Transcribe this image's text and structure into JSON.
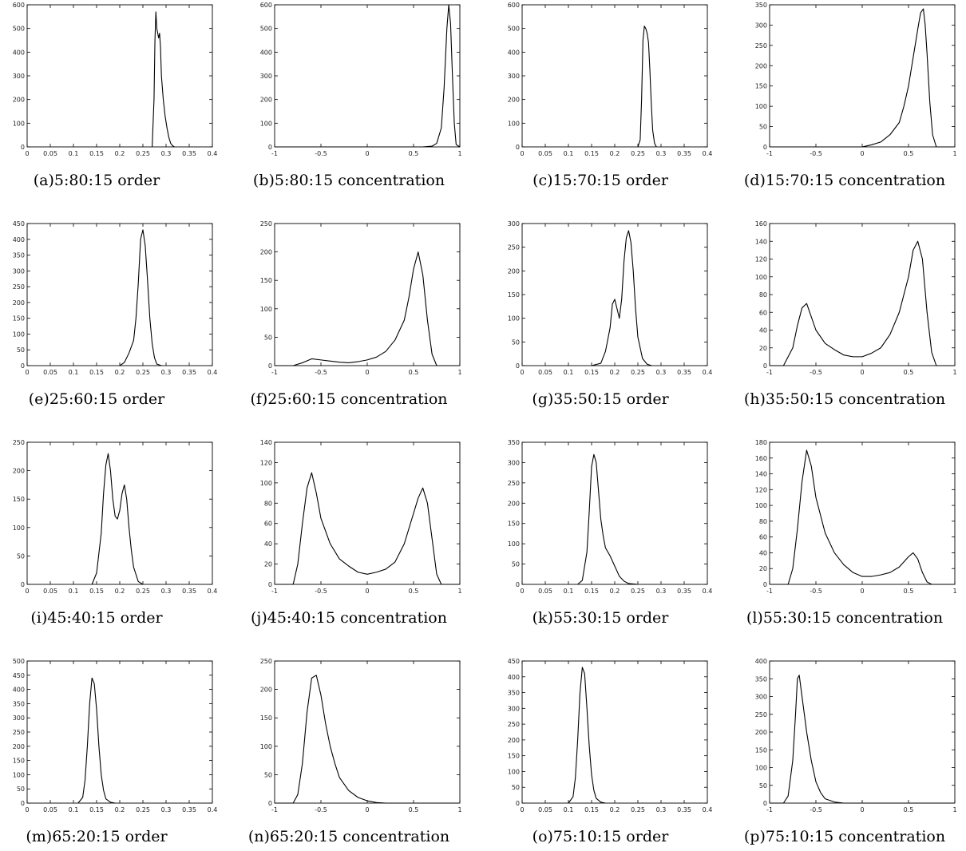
{
  "figure": {
    "background": "#ffffff",
    "line_color": "#000000"
  },
  "chart_data": [
    {
      "type": "line",
      "caption": "(a)5:80:15 order",
      "xlim": [
        0,
        0.4
      ],
      "ylim": [
        0,
        600
      ],
      "xticks": [
        0,
        0.05,
        0.1,
        0.15,
        0.2,
        0.25,
        0.3,
        0.35,
        0.4
      ],
      "yticks": [
        0,
        100,
        200,
        300,
        400,
        500,
        600
      ],
      "x": [
        0.27,
        0.274,
        0.276,
        0.278,
        0.28,
        0.282,
        0.284,
        0.286,
        0.288,
        0.29,
        0.294,
        0.298,
        0.302,
        0.306,
        0.31,
        0.314,
        0.318
      ],
      "y": [
        0,
        200,
        450,
        570,
        500,
        480,
        460,
        480,
        420,
        300,
        200,
        130,
        80,
        40,
        15,
        5,
        0
      ]
    },
    {
      "type": "line",
      "caption": "(b)5:80:15 concentration",
      "xlim": [
        -1,
        1
      ],
      "ylim": [
        0,
        600
      ],
      "xticks": [
        -1,
        -0.5,
        0,
        0.5,
        1
      ],
      "yticks": [
        0,
        100,
        200,
        300,
        400,
        500,
        600
      ],
      "x": [
        -1,
        0.6,
        0.7,
        0.75,
        0.8,
        0.83,
        0.86,
        0.88,
        0.9,
        0.92,
        0.94,
        0.96,
        1
      ],
      "y": [
        0,
        0,
        3,
        15,
        80,
        250,
        500,
        600,
        520,
        300,
        100,
        10,
        0
      ]
    },
    {
      "type": "line",
      "caption": "(c)15:70:15 order",
      "xlim": [
        0,
        0.4
      ],
      "ylim": [
        0,
        600
      ],
      "xticks": [
        0,
        0.05,
        0.1,
        0.15,
        0.2,
        0.25,
        0.3,
        0.35,
        0.4
      ],
      "yticks": [
        0,
        100,
        200,
        300,
        400,
        500,
        600
      ],
      "x": [
        0.25,
        0.255,
        0.258,
        0.261,
        0.264,
        0.267,
        0.27,
        0.273,
        0.276,
        0.279,
        0.282,
        0.286,
        0.29
      ],
      "y": [
        0,
        30,
        200,
        450,
        510,
        500,
        480,
        440,
        320,
        180,
        70,
        15,
        0
      ]
    },
    {
      "type": "line",
      "caption": "(d)15:70:15 concentration",
      "xlim": [
        -1,
        1
      ],
      "ylim": [
        0,
        350
      ],
      "xticks": [
        -1,
        -0.5,
        0,
        0.5,
        1
      ],
      "yticks": [
        0,
        50,
        100,
        150,
        200,
        250,
        300,
        350
      ],
      "x": [
        -1,
        0,
        0.1,
        0.2,
        0.3,
        0.4,
        0.45,
        0.5,
        0.55,
        0.6,
        0.63,
        0.66,
        0.68,
        0.7,
        0.73,
        0.76,
        0.8,
        1
      ],
      "y": [
        0,
        0,
        5,
        12,
        30,
        60,
        100,
        150,
        220,
        290,
        330,
        340,
        300,
        230,
        110,
        30,
        0,
        0
      ]
    },
    {
      "type": "line",
      "caption": "(e)25:60:15 order",
      "xlim": [
        0,
        0.4
      ],
      "ylim": [
        0,
        450
      ],
      "xticks": [
        0,
        0.05,
        0.1,
        0.15,
        0.2,
        0.25,
        0.3,
        0.35,
        0.4
      ],
      "yticks": [
        0,
        50,
        100,
        150,
        200,
        250,
        300,
        350,
        400,
        450
      ],
      "x": [
        0.2,
        0.21,
        0.22,
        0.23,
        0.235,
        0.24,
        0.245,
        0.25,
        0.255,
        0.26,
        0.265,
        0.27,
        0.275,
        0.28,
        0.29
      ],
      "y": [
        0,
        10,
        40,
        80,
        150,
        260,
        400,
        430,
        380,
        270,
        150,
        70,
        25,
        5,
        0
      ]
    },
    {
      "type": "line",
      "caption": "(f)25:60:15 concentration",
      "xlim": [
        -1,
        1
      ],
      "ylim": [
        0,
        250
      ],
      "xticks": [
        -1,
        -0.5,
        0,
        0.5,
        1
      ],
      "yticks": [
        0,
        50,
        100,
        150,
        200,
        250
      ],
      "x": [
        -1,
        -0.8,
        -0.7,
        -0.6,
        -0.5,
        -0.4,
        -0.3,
        -0.2,
        -0.1,
        0,
        0.1,
        0.2,
        0.3,
        0.4,
        0.45,
        0.5,
        0.55,
        0.6,
        0.65,
        0.7,
        0.75,
        1
      ],
      "y": [
        0,
        0,
        5,
        12,
        10,
        8,
        6,
        5,
        7,
        10,
        15,
        25,
        45,
        80,
        120,
        170,
        200,
        160,
        80,
        20,
        0,
        0
      ]
    },
    {
      "type": "line",
      "caption": "(g)35:50:15 order",
      "xlim": [
        0,
        0.4
      ],
      "ylim": [
        0,
        300
      ],
      "xticks": [
        0,
        0.05,
        0.1,
        0.15,
        0.2,
        0.25,
        0.3,
        0.35,
        0.4
      ],
      "yticks": [
        0,
        50,
        100,
        150,
        200,
        250,
        300
      ],
      "x": [
        0.15,
        0.17,
        0.18,
        0.19,
        0.195,
        0.2,
        0.205,
        0.21,
        0.215,
        0.22,
        0.225,
        0.23,
        0.235,
        0.24,
        0.245,
        0.25,
        0.26,
        0.27,
        0.28
      ],
      "y": [
        0,
        5,
        30,
        80,
        130,
        140,
        120,
        100,
        140,
        220,
        270,
        285,
        260,
        200,
        120,
        60,
        15,
        3,
        0
      ]
    },
    {
      "type": "line",
      "caption": "(h)35:50:15 concentration",
      "xlim": [
        -1,
        1
      ],
      "ylim": [
        0,
        160
      ],
      "xticks": [
        -1,
        -0.5,
        0,
        0.5,
        1
      ],
      "yticks": [
        0,
        20,
        40,
        60,
        80,
        100,
        120,
        140,
        160
      ],
      "x": [
        -1,
        -0.85,
        -0.75,
        -0.7,
        -0.65,
        -0.6,
        -0.55,
        -0.5,
        -0.4,
        -0.3,
        -0.2,
        -0.1,
        0,
        0.1,
        0.2,
        0.3,
        0.4,
        0.5,
        0.55,
        0.6,
        0.65,
        0.7,
        0.75,
        0.8,
        1
      ],
      "y": [
        0,
        0,
        20,
        45,
        65,
        70,
        55,
        40,
        25,
        18,
        12,
        10,
        10,
        14,
        20,
        35,
        60,
        100,
        130,
        140,
        120,
        60,
        15,
        0,
        0
      ]
    },
    {
      "type": "line",
      "caption": "(i)45:40:15 order",
      "xlim": [
        0,
        0.4
      ],
      "ylim": [
        0,
        250
      ],
      "xticks": [
        0,
        0.05,
        0.1,
        0.15,
        0.2,
        0.25,
        0.3,
        0.35,
        0.4
      ],
      "yticks": [
        0,
        50,
        100,
        150,
        200,
        250
      ],
      "x": [
        0.14,
        0.15,
        0.16,
        0.165,
        0.17,
        0.175,
        0.18,
        0.185,
        0.19,
        0.195,
        0.2,
        0.205,
        0.21,
        0.215,
        0.22,
        0.225,
        0.23,
        0.24,
        0.25
      ],
      "y": [
        0,
        20,
        90,
        160,
        210,
        230,
        200,
        150,
        120,
        115,
        130,
        160,
        175,
        150,
        100,
        60,
        30,
        5,
        0
      ]
    },
    {
      "type": "line",
      "caption": "(j)45:40:15 concentration",
      "xlim": [
        -1,
        1
      ],
      "ylim": [
        0,
        140
      ],
      "xticks": [
        -1,
        -0.5,
        0,
        0.5,
        1
      ],
      "yticks": [
        0,
        20,
        40,
        60,
        80,
        100,
        120,
        140
      ],
      "x": [
        -1,
        -0.8,
        -0.75,
        -0.7,
        -0.65,
        -0.6,
        -0.55,
        -0.5,
        -0.4,
        -0.3,
        -0.2,
        -0.1,
        0,
        0.1,
        0.2,
        0.3,
        0.4,
        0.5,
        0.55,
        0.6,
        0.65,
        0.7,
        0.75,
        0.8,
        1
      ],
      "y": [
        0,
        0,
        20,
        60,
        95,
        110,
        90,
        65,
        40,
        25,
        18,
        12,
        10,
        12,
        15,
        22,
        40,
        70,
        85,
        95,
        80,
        45,
        10,
        0,
        0
      ]
    },
    {
      "type": "line",
      "caption": "(k)55:30:15 order",
      "xlim": [
        0,
        0.4
      ],
      "ylim": [
        0,
        350
      ],
      "xticks": [
        0,
        0.05,
        0.1,
        0.15,
        0.2,
        0.25,
        0.3,
        0.35,
        0.4
      ],
      "yticks": [
        0,
        50,
        100,
        150,
        200,
        250,
        300,
        350
      ],
      "x": [
        0.12,
        0.13,
        0.14,
        0.145,
        0.15,
        0.155,
        0.16,
        0.165,
        0.17,
        0.175,
        0.18,
        0.19,
        0.2,
        0.21,
        0.22,
        0.23,
        0.25
      ],
      "y": [
        0,
        10,
        80,
        180,
        290,
        320,
        300,
        230,
        160,
        120,
        90,
        70,
        45,
        20,
        8,
        2,
        0
      ]
    },
    {
      "type": "line",
      "caption": "(l)55:30:15 concentration",
      "xlim": [
        -1,
        1
      ],
      "ylim": [
        0,
        180
      ],
      "xticks": [
        -1,
        -0.5,
        0,
        0.5,
        1
      ],
      "yticks": [
        0,
        20,
        40,
        60,
        80,
        100,
        120,
        140,
        160,
        180
      ],
      "x": [
        -1,
        -0.8,
        -0.75,
        -0.7,
        -0.65,
        -0.6,
        -0.55,
        -0.5,
        -0.4,
        -0.3,
        -0.2,
        -0.1,
        0,
        0.1,
        0.2,
        0.3,
        0.4,
        0.5,
        0.55,
        0.6,
        0.65,
        0.7,
        0.75,
        1
      ],
      "y": [
        0,
        0,
        20,
        70,
        130,
        170,
        150,
        110,
        65,
        40,
        25,
        15,
        10,
        10,
        12,
        15,
        22,
        35,
        40,
        32,
        15,
        3,
        0,
        0
      ]
    },
    {
      "type": "line",
      "caption": "(m)65:20:15 order",
      "xlim": [
        0,
        0.4
      ],
      "ylim": [
        0,
        500
      ],
      "xticks": [
        0,
        0.05,
        0.1,
        0.15,
        0.2,
        0.25,
        0.3,
        0.35,
        0.4
      ],
      "yticks": [
        0,
        50,
        100,
        150,
        200,
        250,
        300,
        350,
        400,
        450,
        500
      ],
      "x": [
        0.11,
        0.12,
        0.125,
        0.13,
        0.135,
        0.14,
        0.145,
        0.15,
        0.155,
        0.16,
        0.165,
        0.17,
        0.18,
        0.19
      ],
      "y": [
        0,
        20,
        80,
        200,
        350,
        440,
        420,
        330,
        200,
        100,
        45,
        15,
        3,
        0
      ]
    },
    {
      "type": "line",
      "caption": "(n)65:20:15 concentration",
      "xlim": [
        -1,
        1
      ],
      "ylim": [
        0,
        250
      ],
      "xticks": [
        -1,
        -0.5,
        0,
        0.5,
        1
      ],
      "yticks": [
        0,
        50,
        100,
        150,
        200,
        250
      ],
      "x": [
        -1,
        -0.8,
        -0.75,
        -0.7,
        -0.65,
        -0.6,
        -0.55,
        -0.5,
        -0.45,
        -0.4,
        -0.35,
        -0.3,
        -0.2,
        -0.1,
        0,
        0.1,
        0.2,
        1
      ],
      "y": [
        0,
        0,
        15,
        70,
        160,
        220,
        225,
        190,
        140,
        100,
        70,
        45,
        22,
        10,
        4,
        1,
        0,
        0
      ]
    },
    {
      "type": "line",
      "caption": "(o)75:10:15 order",
      "xlim": [
        0,
        0.4
      ],
      "ylim": [
        0,
        450
      ],
      "xticks": [
        0,
        0.05,
        0.1,
        0.15,
        0.2,
        0.25,
        0.3,
        0.35,
        0.4
      ],
      "yticks": [
        0,
        50,
        100,
        150,
        200,
        250,
        300,
        350,
        400,
        450
      ],
      "x": [
        0.1,
        0.11,
        0.115,
        0.12,
        0.125,
        0.13,
        0.135,
        0.14,
        0.145,
        0.15,
        0.155,
        0.16,
        0.17,
        0.18
      ],
      "y": [
        0,
        20,
        80,
        200,
        350,
        430,
        410,
        300,
        180,
        90,
        40,
        15,
        3,
        0
      ]
    },
    {
      "type": "line",
      "caption": "(p)75:10:15 concentration",
      "xlim": [
        -1,
        1
      ],
      "ylim": [
        0,
        400
      ],
      "xticks": [
        -1,
        -0.5,
        0,
        0.5,
        1
      ],
      "yticks": [
        0,
        50,
        100,
        150,
        200,
        250,
        300,
        350,
        400
      ],
      "x": [
        -1,
        -0.85,
        -0.8,
        -0.75,
        -0.72,
        -0.7,
        -0.68,
        -0.65,
        -0.6,
        -0.55,
        -0.5,
        -0.45,
        -0.4,
        -0.3,
        -0.2,
        1
      ],
      "y": [
        0,
        0,
        20,
        120,
        250,
        350,
        360,
        300,
        200,
        120,
        60,
        30,
        12,
        3,
        0,
        0
      ]
    }
  ]
}
